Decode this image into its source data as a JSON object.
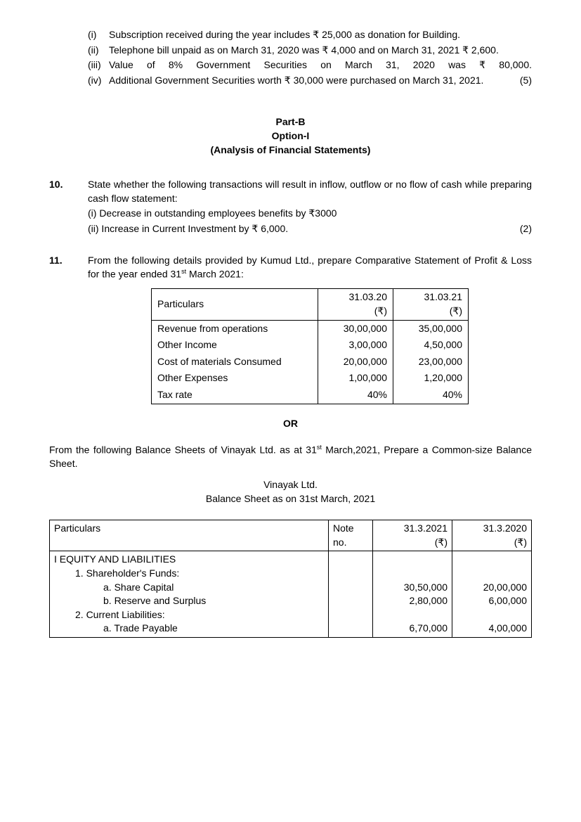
{
  "intro_items": [
    {
      "num": "(i)",
      "text": "Subscription received during the year includes ₹ 25,000 as donation for Building."
    },
    {
      "num": "(ii)",
      "text": "Telephone bill unpaid as on March 31, 2020 was ₹ 4,000 and on March 31, 2021 ₹ 2,600."
    },
    {
      "num": "(iii)",
      "text": "Value of 8% Government Securities on March 31, 2020 was ₹ 80,000."
    },
    {
      "num": "(iv)",
      "text": "Additional Government Securities worth ₹ 30,000 were purchased on March 31, 2021.",
      "marks": "(5)"
    }
  ],
  "part_header": {
    "line1": "Part-B",
    "line2": "Option-I",
    "line3": "(Analysis of Financial Statements)"
  },
  "q10": {
    "num": "10.",
    "intro": "State whether the following transactions will result in inflow, outflow or no flow of cash while preparing cash flow statement:",
    "sub1": "(i)  Decrease in outstanding employees benefits by ₹3000",
    "sub2_text": "(ii) Increase in Current Investment by ₹ 6,000.",
    "marks": "(2)"
  },
  "q11": {
    "num": "11.",
    "intro_a": "From the following details provided by Kumud Ltd., prepare Comparative Statement of Profit & Loss for the year ended 31",
    "intro_b": " March 2021:",
    "sup": "st",
    "table": {
      "headers": [
        "Particulars",
        "31.03.20 (₹)",
        "31.03.21 (₹)"
      ],
      "rows": [
        [
          "Revenue from operations",
          "30,00,000",
          "35,00,000"
        ],
        [
          "Other Income",
          "3,00,000",
          "4,50,000"
        ],
        [
          "Cost of materials Consumed",
          "20,00,000",
          "23,00,000"
        ],
        [
          "Other Expenses",
          "1,00,000",
          "1,20,000"
        ],
        [
          "Tax rate",
          "40%",
          "40%"
        ]
      ]
    },
    "or": "OR",
    "alt_a": "From the following Balance Sheets of Vinayak Ltd. as at 31",
    "alt_b": " March,2021, Prepare a Common-size Balance Sheet.",
    "bs_title1": "Vinayak Ltd.",
    "bs_title2": "Balance Sheet as on 31st March, 2021",
    "table2": {
      "headers": [
        "Particulars",
        "Note no.",
        "31.3.2021 (₹)",
        "31.3.2020 (₹)"
      ],
      "section": "I EQUITY AND LIABILITIES",
      "rows": [
        {
          "label": "1. Shareholder's Funds:",
          "indent": 1,
          "v1": "",
          "v2": ""
        },
        {
          "label": "a. Share Capital",
          "indent": 2,
          "v1": "30,50,000",
          "v2": "20,00,000"
        },
        {
          "label": "b. Reserve and Surplus",
          "indent": 2,
          "v1": "2,80,000",
          "v2": "6,00,000"
        },
        {
          "label": "2. Current Liabilities:",
          "indent": 1,
          "v1": "",
          "v2": ""
        },
        {
          "label": "a. Trade Payable",
          "indent": 2,
          "v1": "6,70,000",
          "v2": "4,00,000"
        }
      ]
    }
  }
}
